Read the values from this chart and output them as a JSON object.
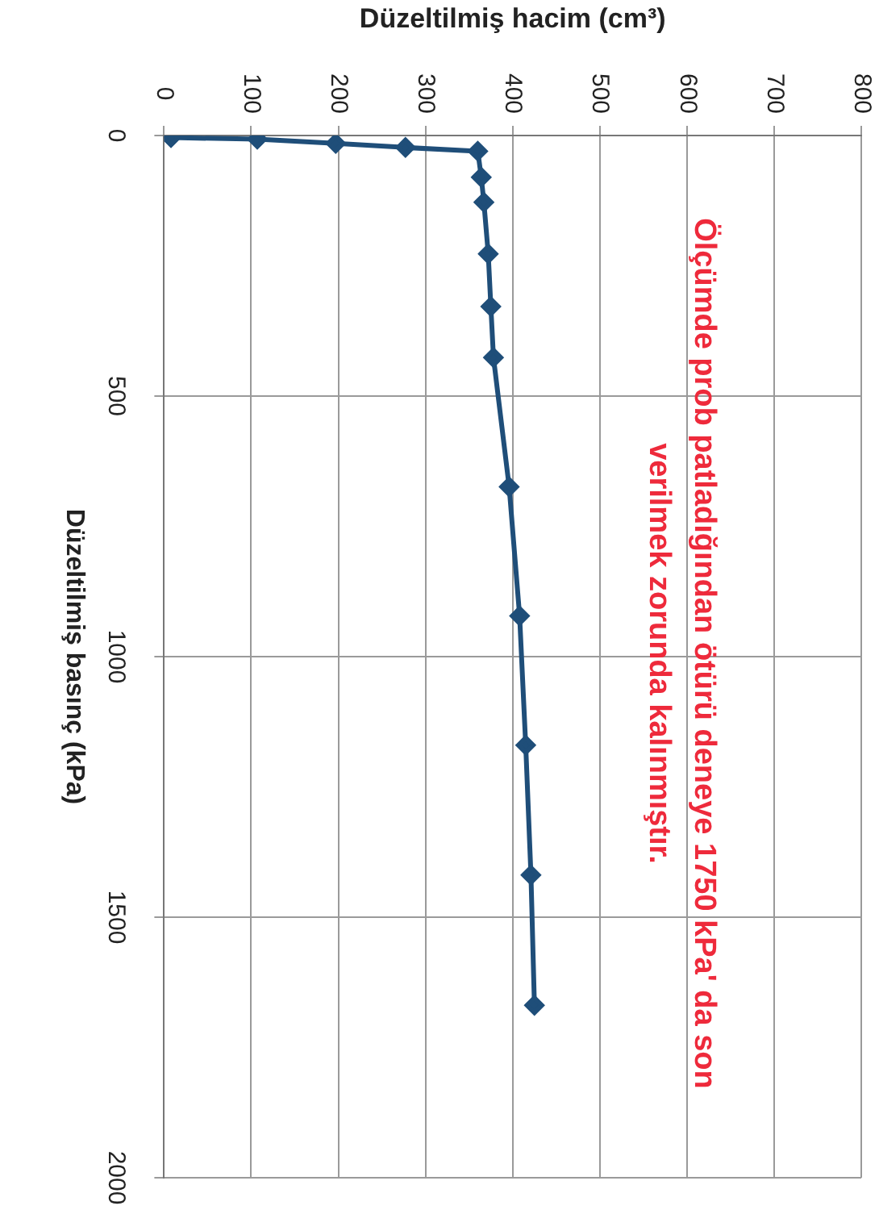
{
  "chart_data": {
    "type": "line",
    "xlabel": "Düzeltilmiş hacim (cm³)",
    "ylabel": "Düzeltilmiş basınç (kPa)",
    "annotations": [
      "Ölçümde prob patladığından ötürü deneye 1750 kPa' da son verilmek zorunda kalınmıştır."
    ],
    "x": [
      8,
      107,
      197,
      277,
      360,
      364,
      367,
      372,
      375,
      378,
      396,
      408,
      415,
      421,
      425
    ],
    "series": [
      {
        "color": "#1f4e79",
        "values": [
          4,
          7,
          15,
          23,
          30,
          80,
          128,
          227,
          328,
          426,
          674,
          922,
          1170,
          1419,
          1669
        ]
      }
    ],
    "xlim": [
      0,
      800
    ],
    "xticks": [
      0,
      100,
      200,
      300,
      400,
      500,
      600,
      700,
      800
    ],
    "ylim": [
      2000,
      0
    ],
    "yticks": [
      0,
      500,
      1000,
      1500,
      2000
    ],
    "grid": true,
    "marker": "diamond",
    "line_style": "solid",
    "legend": false
  }
}
